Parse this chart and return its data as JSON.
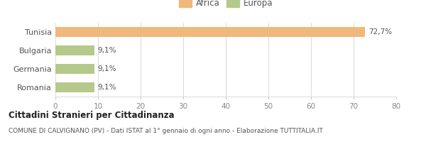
{
  "categories": [
    "Tunisia",
    "Bulgaria",
    "Germania",
    "Romania"
  ],
  "values": [
    72.7,
    9.1,
    9.1,
    9.1
  ],
  "labels": [
    "72,7%",
    "9,1%",
    "9,1%",
    "9,1%"
  ],
  "bar_colors": [
    "#f0b87a",
    "#b5c98a",
    "#b5c98a",
    "#b5c98a"
  ],
  "legend": [
    {
      "label": "Africa",
      "color": "#f0b87a"
    },
    {
      "label": "Europa",
      "color": "#b5c98a"
    }
  ],
  "xlim": [
    0,
    80
  ],
  "xticks": [
    0,
    10,
    20,
    30,
    40,
    50,
    60,
    70,
    80
  ],
  "title_bold": "Cittadini Stranieri per Cittadinanza",
  "subtitle": "COMUNE DI CALVIGNANO (PV) - Dati ISTAT al 1° gennaio di ogni anno - Elaborazione TUTTITALIA.IT",
  "background_color": "#ffffff",
  "grid_color": "#dddddd"
}
